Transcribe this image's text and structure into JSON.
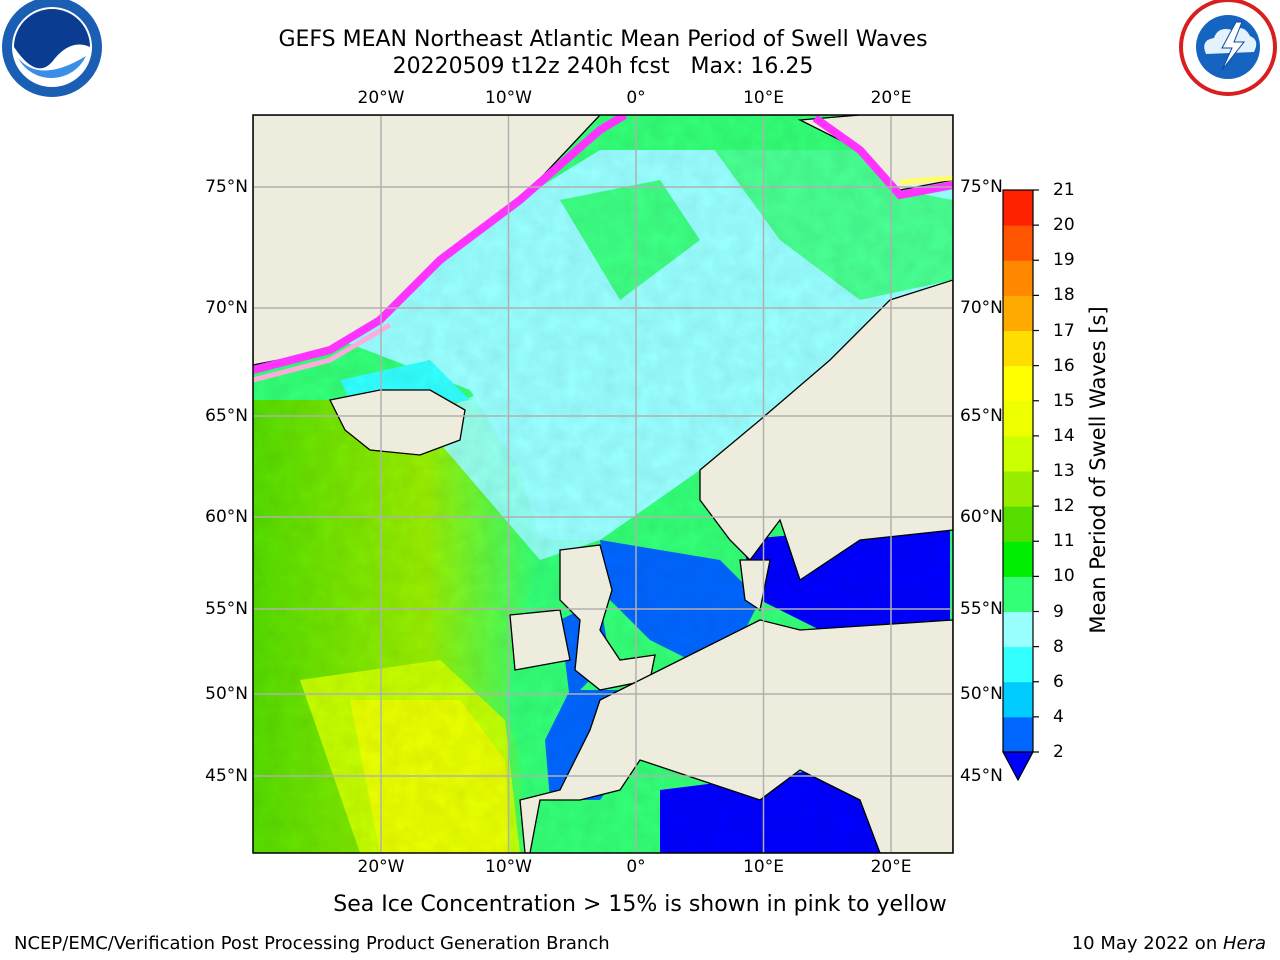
{
  "header": {
    "title_line1": "GEFS MEAN Northeast Atlantic Mean Period of Swell Waves",
    "title_line2": "20220509 t12z 240h fcst   Max: 16.25"
  },
  "logos": {
    "left": {
      "name": "NOAA",
      "ring_text": "NATIONAL OCEANIC AND ATMOSPHERIC ADMINISTRATION · U.S. DEPARTMENT OF COMMERCE"
    },
    "right": {
      "name": "NATIONAL WEATHER SERVICE"
    }
  },
  "map": {
    "projection": "lat-lon",
    "lon_ticks": [
      {
        "lon": -20,
        "label": "20°W"
      },
      {
        "lon": -10,
        "label": "10°W"
      },
      {
        "lon": 0,
        "label": "0°"
      },
      {
        "lon": 10,
        "label": "10°E"
      },
      {
        "lon": 20,
        "label": "20°E"
      }
    ],
    "lat_ticks": [
      {
        "lat": 75,
        "label": "75°N"
      },
      {
        "lat": 70,
        "label": "70°N"
      },
      {
        "lat": 65,
        "label": "65°N"
      },
      {
        "lat": 60,
        "label": "60°N"
      },
      {
        "lat": 55,
        "label": "55°N"
      },
      {
        "lat": 50,
        "label": "50°N"
      },
      {
        "lat": 45,
        "label": "45°N"
      }
    ],
    "grid": true,
    "land_color": "#eeeddd",
    "ice_colors": [
      "#ff33ff",
      "#ffaadd",
      "#ffff66"
    ]
  },
  "colorbar": {
    "label": "Mean Period of Swell Waves [s]",
    "ticks": [
      "2",
      "4",
      "6",
      "8",
      "9",
      "10",
      "11",
      "12",
      "13",
      "14",
      "15",
      "16",
      "17",
      "18",
      "19",
      "20",
      "21"
    ],
    "colors": [
      "#0066ff",
      "#00ccff",
      "#33ffff",
      "#99ffff",
      "#33ff77",
      "#00ee00",
      "#55dd00",
      "#99ee00",
      "#ccff00",
      "#eeff00",
      "#ffff00",
      "#ffdd00",
      "#ffaa00",
      "#ff8800",
      "#ff5500",
      "#ff2200"
    ],
    "extend_min_color": "#0000ff"
  },
  "note": "Sea Ice Concentration > 15% is shown in pink to yellow",
  "footer": {
    "left": "NCEP/EMC/Verification Post Processing Product Generation Branch",
    "date": "10 May 2022 on ",
    "system": "Hera"
  }
}
